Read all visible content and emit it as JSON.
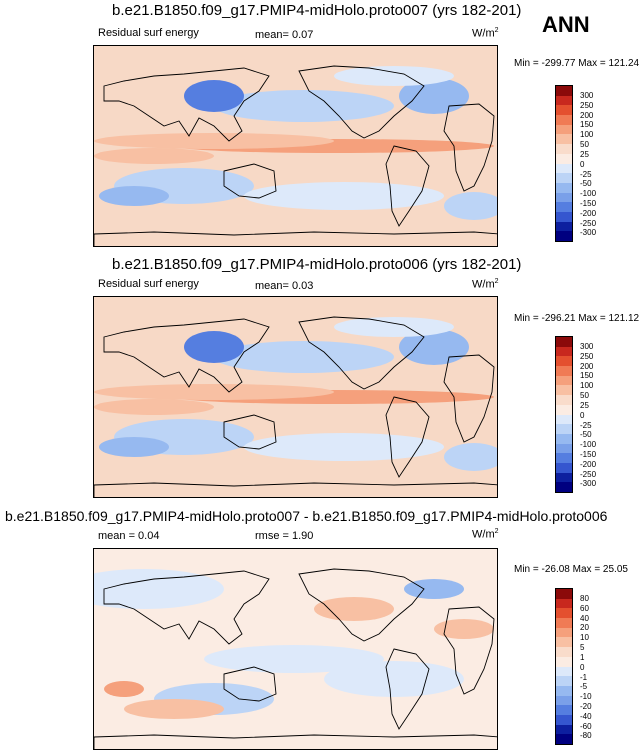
{
  "season": "ANN",
  "units_label": "W/m",
  "units_exp": "2",
  "panels": [
    {
      "title": "b.e21.B1850.f09_g17.PMIP4-midHolo.proto007 (yrs 182-201)",
      "variable": "Residual surf energy",
      "mean_text": "mean=  0.07",
      "minmax_text": "Min = -299.77 Max = 121.24"
    },
    {
      "title": "b.e21.B1850.f09_g17.PMIP4-midHolo.proto006 (yrs 182-201)",
      "variable": "Residual surf energy",
      "mean_text": "mean=  0.03",
      "minmax_text": "Min = -296.21 Max = 121.12"
    },
    {
      "title": "b.e21.B1850.f09_g17.PMIP4-midHolo.proto007 - b.e21.B1850.f09_g17.PMIP4-midHolo.proto006",
      "mean_text": "mean =  0.04",
      "rmse_text": "rmse =  1.90",
      "minmax_text": "Min = -26.08 Max =  25.05"
    }
  ],
  "chart_data": [
    {
      "type": "heatmap",
      "title": "b.e21.B1850.f09_g17.PMIP4-midHolo.proto007 (yrs 182-201)",
      "variable": "Residual surf energy",
      "units": "W/m2",
      "mean": 0.07,
      "min": -299.77,
      "max": 121.24,
      "colorbar_levels": [
        "300",
        "250",
        "200",
        "150",
        "100",
        "50",
        "25",
        "0",
        "-25",
        "-50",
        "-100",
        "-150",
        "-200",
        "-250",
        "-300"
      ]
    },
    {
      "type": "heatmap",
      "title": "b.e21.B1850.f09_g17.PMIP4-midHolo.proto006 (yrs 182-201)",
      "variable": "Residual surf energy",
      "units": "W/m2",
      "mean": 0.03,
      "min": -296.21,
      "max": 121.12,
      "colorbar_levels": [
        "300",
        "250",
        "200",
        "150",
        "100",
        "50",
        "25",
        "0",
        "-25",
        "-50",
        "-100",
        "-150",
        "-200",
        "-250",
        "-300"
      ]
    },
    {
      "type": "heatmap",
      "title": "b.e21.B1850.f09_g17.PMIP4-midHolo.proto007 - b.e21.B1850.f09_g17.PMIP4-midHolo.proto006",
      "units": "W/m2",
      "mean": 0.04,
      "rmse": 1.9,
      "min": -26.08,
      "max": 25.05,
      "colorbar_levels": [
        "80",
        "60",
        "40",
        "20",
        "10",
        "5",
        "1",
        "0",
        "-1",
        "-5",
        "-10",
        "-20",
        "-40",
        "-60",
        "-80"
      ]
    }
  ],
  "colors": [
    "#8b0a0a",
    "#c8281e",
    "#e4502f",
    "#f07b55",
    "#f5a07c",
    "#f8c0a3",
    "#f9dccb",
    "#fbece3",
    "#dde9fa",
    "#bcd4f6",
    "#96b9f0",
    "#7aa0e9",
    "#557ee0",
    "#3556cf",
    "#0d1f9f",
    "#000080"
  ]
}
